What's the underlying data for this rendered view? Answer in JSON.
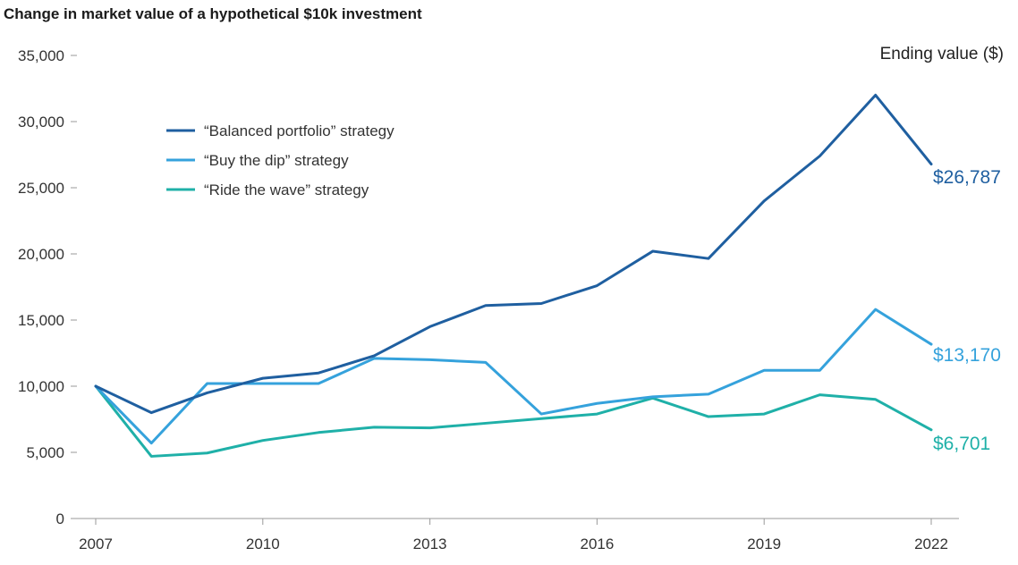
{
  "chart_data": {
    "type": "line",
    "title": "Change in market value of a hypothetical $10k investment",
    "end_label_header": "Ending value ($)",
    "xlabel": "",
    "ylabel": "",
    "x": [
      2007,
      2008,
      2009,
      2010,
      2011,
      2012,
      2013,
      2014,
      2015,
      2016,
      2017,
      2018,
      2019,
      2020,
      2021,
      2022
    ],
    "x_ticks": [
      "2007",
      "2010",
      "2013",
      "2016",
      "2019",
      "2022"
    ],
    "x_tick_values": [
      2007,
      2010,
      2013,
      2016,
      2019,
      2022
    ],
    "y_ticks": [
      "0",
      "5,000",
      "10,000",
      "15,000",
      "20,000",
      "25,000",
      "30,000",
      "35,000"
    ],
    "y_tick_values": [
      0,
      5000,
      10000,
      15000,
      20000,
      25000,
      30000,
      35000
    ],
    "ylim": [
      0,
      35000
    ],
    "xlim": [
      2007,
      2022
    ],
    "grid": false,
    "legend_position": "top-left",
    "series": [
      {
        "name": "“Balanced portfolio” strategy",
        "color": "#1f5fa0",
        "end_label": "$26,787",
        "values": [
          10000,
          8000,
          9500,
          10600,
          11000,
          12300,
          14500,
          16100,
          16250,
          17600,
          20200,
          19650,
          24000,
          27400,
          32000,
          26787
        ]
      },
      {
        "name": "“Buy the dip” strategy",
        "color": "#35a2dc",
        "end_label": "$13,170",
        "values": [
          10000,
          5700,
          10200,
          10200,
          10200,
          12100,
          12000,
          11800,
          7900,
          8700,
          9200,
          9400,
          11200,
          11200,
          15800,
          13170
        ]
      },
      {
        "name": "“Ride the wave” strategy",
        "color": "#1fb0a8",
        "end_label": "$6,701",
        "values": [
          10000,
          4700,
          4950,
          5900,
          6500,
          6900,
          6850,
          7200,
          7550,
          7900,
          9100,
          7700,
          7900,
          9350,
          9000,
          6701
        ]
      }
    ]
  }
}
